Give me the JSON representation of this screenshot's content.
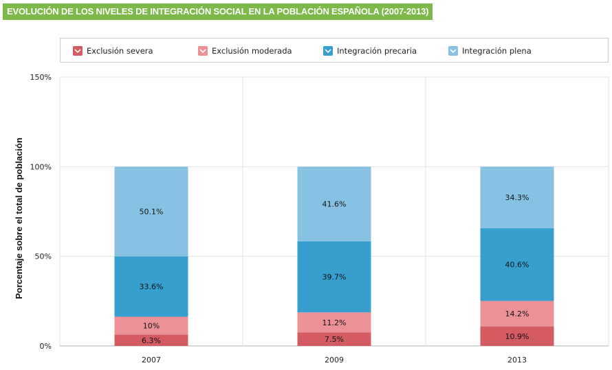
{
  "title": "EVOLUCIÓN DE LOS NIVELES DE INTEGRACIÓN SOCIAL EN LA POBLACIÓN ESPAÑOLA (2007-2013)",
  "chart_data": {
    "type": "bar",
    "stacked": true,
    "categories": [
      "2007",
      "2009",
      "2013"
    ],
    "ylabel": "Porcentaje sobre el total de población",
    "ylim": [
      0,
      150
    ],
    "yticks": [
      "0%",
      "50%",
      "100%",
      "150%"
    ],
    "legend_position": "top",
    "grid": true,
    "series": [
      {
        "name": "Exclusión severa",
        "color": "#d45b62",
        "values": [
          6.3,
          7.5,
          10.9
        ],
        "labels": [
          "6.3%",
          "7.5%",
          "10.9%"
        ]
      },
      {
        "name": "Exclusión moderada",
        "color": "#ec9296",
        "values": [
          10,
          11.2,
          14.2
        ],
        "labels": [
          "10%",
          "11.2%",
          "14.2%"
        ]
      },
      {
        "name": "Integración precaria",
        "color": "#369fce",
        "values": [
          33.6,
          39.7,
          40.6
        ],
        "labels": [
          "33.6%",
          "39.7%",
          "40.6%"
        ]
      },
      {
        "name": "Integración plena",
        "color": "#88c2e2",
        "values": [
          50.1,
          41.6,
          34.3
        ],
        "labels": [
          "50.1%",
          "41.6%",
          "34.3%"
        ]
      }
    ]
  }
}
